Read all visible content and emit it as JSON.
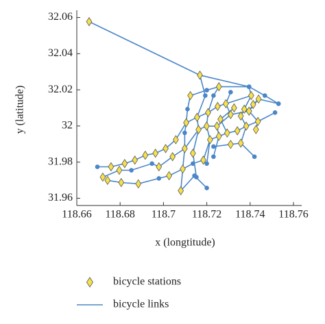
{
  "chart_data": {
    "type": "scatter",
    "x_label": "x (longtitude)",
    "y_label": "y (latitude)",
    "xlim": [
      118.66,
      118.76
    ],
    "xticks": [
      118.66,
      118.68,
      118.7,
      118.72,
      118.74,
      118.76
    ],
    "ylim": [
      31.956,
      32.064
    ],
    "yticks": [
      31.96,
      31.98,
      32,
      32.02,
      32.04,
      32.06
    ],
    "series": [
      {
        "name": "bicycle stations",
        "type": "scatter",
        "color": "#f5e04e",
        "x": [
          118.6657,
          118.7168,
          118.7256,
          118.7124,
          118.7405,
          118.7439,
          118.7414,
          118.7373,
          118.7326,
          118.7288,
          118.725,
          118.7206,
          118.7155,
          118.7105,
          118.7263,
          118.731,
          118.7357,
          118.7395,
          118.7436,
          118.7427,
          118.7382,
          118.7341,
          118.7294,
          118.7256,
          118.7215,
          118.7162,
          118.7199,
          118.7247,
          118.7057,
          118.701,
          118.6963,
          118.6916,
          118.6868,
          118.6821,
          118.6796,
          118.6758,
          118.672,
          118.6742,
          118.6805,
          118.6884,
          118.6979,
          118.7042,
          118.7098,
          118.7136,
          118.7184,
          118.7089,
          118.708,
          118.7026,
          118.7357,
          118.731
        ],
        "y": [
          32.0577,
          32.0281,
          32.0217,
          32.0168,
          32.0168,
          32.0149,
          32.0119,
          32.0093,
          32.01,
          32.0123,
          32.0108,
          32.0074,
          32.0048,
          32.0018,
          32.0037,
          32.0063,
          32.0055,
          32.0082,
          32.0025,
          31.998,
          31.9999,
          31.9973,
          31.9961,
          31.9943,
          31.9924,
          31.998,
          31.9999,
          31.9999,
          31.9924,
          31.9875,
          31.9849,
          31.9838,
          31.9811,
          31.9792,
          31.9755,
          31.9774,
          31.9717,
          31.9699,
          31.9687,
          31.968,
          31.9774,
          31.983,
          31.9875,
          31.9849,
          31.9811,
          31.9762,
          31.9642,
          31.9725,
          31.9905,
          31.9898
        ]
      },
      {
        "name": "bicycle links",
        "type": "line",
        "color": "#4a86c8",
        "x": [
          118.6657,
          118.7168,
          118.7395,
          118.7468,
          118.7531,
          null,
          118.7124,
          118.72,
          118.7256,
          118.7395,
          null,
          118.6695,
          118.6758,
          118.6821,
          118.6868,
          118.6916,
          118.6963,
          118.701,
          118.7057,
          118.7105,
          118.7155,
          118.7206,
          118.725,
          118.7288,
          118.7405,
          118.7395,
          null,
          118.672,
          118.6796,
          118.6852,
          118.6947,
          118.6979,
          118.7042,
          118.7098,
          118.7162,
          118.7199,
          118.7247,
          118.731,
          118.7395,
          118.7439,
          118.7531,
          null,
          118.6742,
          118.6805,
          118.6884,
          118.6979,
          118.7026,
          118.7089,
          118.7136,
          118.7184,
          118.7215,
          118.7256,
          118.7294,
          118.7341,
          118.7382,
          118.7436,
          118.7515,
          null,
          118.708,
          118.7143,
          118.72,
          null,
          118.7124,
          118.7111,
          118.7105,
          118.7098,
          118.7098,
          118.7089,
          118.708,
          null,
          118.7168,
          118.7193,
          118.7155,
          118.7162,
          118.7136,
          118.7152,
          null,
          118.7256,
          118.7231,
          118.7206,
          118.7199,
          118.7215,
          118.72,
          null,
          118.731,
          118.7288,
          118.731,
          118.7247,
          118.7256,
          118.7231,
          null,
          118.7405,
          118.7373,
          118.7357,
          118.7382,
          118.7357,
          118.742,
          null,
          118.7439,
          118.7414,
          118.7395,
          118.7436,
          118.7427,
          null,
          118.7357,
          118.731,
          118.7231,
          null,
          118.7326,
          118.7263,
          118.7294
        ],
        "y": [
          32.0577,
          32.0281,
          32.0217,
          32.0168,
          32.0123,
          null,
          32.0168,
          32.0198,
          32.0217,
          32.0217,
          null,
          31.9774,
          31.9774,
          31.9792,
          31.9811,
          31.9838,
          31.9849,
          31.9875,
          31.9924,
          32.0018,
          32.0048,
          32.0074,
          32.0108,
          32.0123,
          32.0168,
          32.0217,
          null,
          31.9717,
          31.9755,
          31.9755,
          31.9792,
          31.9774,
          31.983,
          31.9875,
          31.998,
          31.9999,
          31.9999,
          32.0063,
          32.0082,
          32.0149,
          32.0123,
          null,
          31.9699,
          31.9687,
          31.968,
          31.971,
          31.9725,
          31.9762,
          31.9792,
          31.9811,
          31.9924,
          31.9943,
          31.9961,
          31.9973,
          31.9999,
          32.0025,
          32.0074,
          null,
          31.9642,
          31.9725,
          31.9657,
          null,
          32.0168,
          32.0093,
          32.0018,
          31.9962,
          31.9875,
          31.9762,
          31.9642,
          null,
          32.0281,
          32.0168,
          32.0048,
          31.998,
          31.9849,
          31.9717,
          null,
          32.0217,
          32.0168,
          32.0074,
          31.9999,
          31.9924,
          31.9792,
          null,
          32.0187,
          32.0123,
          32.0063,
          31.9999,
          31.9943,
          31.983,
          null,
          32.0168,
          32.0093,
          32.0055,
          31.9999,
          31.9905,
          31.983,
          null,
          32.0149,
          32.0119,
          32.0082,
          32.0025,
          31.998,
          null,
          31.9905,
          31.9898,
          31.9886,
          null,
          32.01,
          32.0037,
          31.9961
        ]
      }
    ]
  }
}
